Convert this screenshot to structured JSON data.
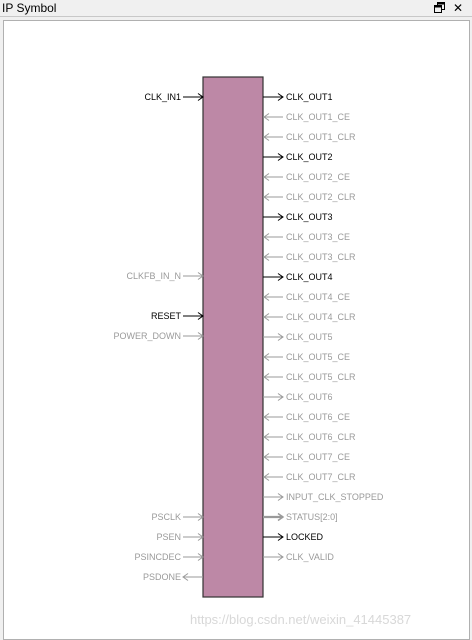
{
  "window": {
    "title": "IP Symbol",
    "restore_icon": "restore-window-icon",
    "close_icon": "close-icon"
  },
  "block": {
    "fill": "#bd88a6",
    "border": "#333333"
  },
  "colors": {
    "active": "#000000",
    "inactive": "#9a9a9a"
  },
  "left_ports": [
    {
      "name": "CLK_IN1",
      "active": true,
      "dir": "in"
    },
    {
      "name": "CLKFB_IN_N",
      "active": false,
      "dir": "in"
    },
    {
      "name": "RESET",
      "active": true,
      "dir": "in"
    },
    {
      "name": "POWER_DOWN",
      "active": false,
      "dir": "in"
    },
    {
      "name": "PSCLK",
      "active": false,
      "dir": "in"
    },
    {
      "name": "PSEN",
      "active": false,
      "dir": "in"
    },
    {
      "name": "PSINCDEC",
      "active": false,
      "dir": "in"
    },
    {
      "name": "PSDONE",
      "active": false,
      "dir": "out"
    }
  ],
  "right_ports": [
    {
      "name": "CLK_OUT1",
      "active": true,
      "dir": "out"
    },
    {
      "name": "CLK_OUT1_CE",
      "active": false,
      "dir": "in"
    },
    {
      "name": "CLK_OUT1_CLR",
      "active": false,
      "dir": "in"
    },
    {
      "name": "CLK_OUT2",
      "active": true,
      "dir": "out"
    },
    {
      "name": "CLK_OUT2_CE",
      "active": false,
      "dir": "in"
    },
    {
      "name": "CLK_OUT2_CLR",
      "active": false,
      "dir": "in"
    },
    {
      "name": "CLK_OUT3",
      "active": true,
      "dir": "out"
    },
    {
      "name": "CLK_OUT3_CE",
      "active": false,
      "dir": "in"
    },
    {
      "name": "CLK_OUT3_CLR",
      "active": false,
      "dir": "in"
    },
    {
      "name": "CLK_OUT4",
      "active": true,
      "dir": "out"
    },
    {
      "name": "CLK_OUT4_CE",
      "active": false,
      "dir": "in"
    },
    {
      "name": "CLK_OUT4_CLR",
      "active": false,
      "dir": "in"
    },
    {
      "name": "CLK_OUT5",
      "active": false,
      "dir": "out"
    },
    {
      "name": "CLK_OUT5_CE",
      "active": false,
      "dir": "in"
    },
    {
      "name": "CLK_OUT5_CLR",
      "active": false,
      "dir": "in"
    },
    {
      "name": "CLK_OUT6",
      "active": false,
      "dir": "out"
    },
    {
      "name": "CLK_OUT6_CE",
      "active": false,
      "dir": "in"
    },
    {
      "name": "CLK_OUT6_CLR",
      "active": false,
      "dir": "in"
    },
    {
      "name": "CLK_OUT7_CE",
      "active": false,
      "dir": "in"
    },
    {
      "name": "CLK_OUT7_CLR",
      "active": false,
      "dir": "in"
    },
    {
      "name": "INPUT_CLK_STOPPED",
      "active": false,
      "dir": "out"
    },
    {
      "name": "STATUS[2:0]",
      "active": false,
      "dir": "out",
      "bus": true
    },
    {
      "name": "LOCKED",
      "active": true,
      "dir": "out"
    },
    {
      "name": "CLK_VALID",
      "active": false,
      "dir": "out"
    }
  ],
  "watermark": "https://blog.csdn.net/weixin_41445387"
}
